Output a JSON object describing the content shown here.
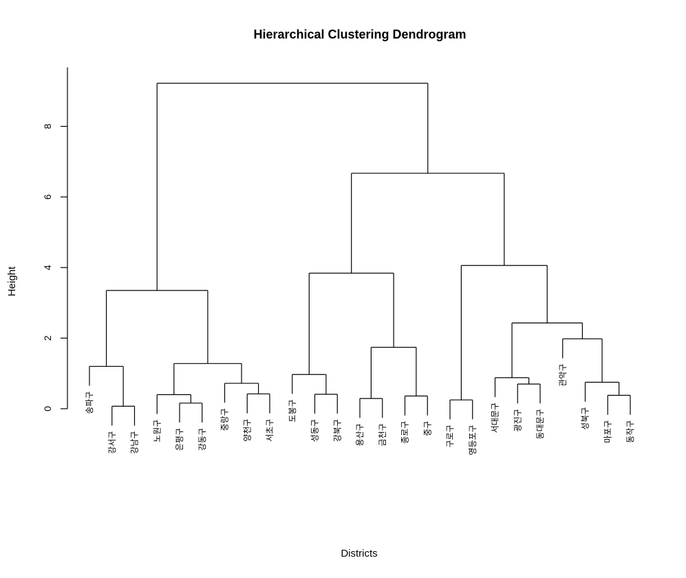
{
  "chart_data": {
    "type": "dendrogram",
    "title": "Hierarchical Clustering Dendrogram",
    "xlabel": "Districts",
    "ylabel": "Height",
    "ylim": [
      0,
      9.7
    ],
    "yticks": [
      0,
      2,
      4,
      6,
      8
    ],
    "leaves": [
      "송파구",
      "강서구",
      "강남구",
      "노원구",
      "은평구",
      "강동구",
      "중랑구",
      "양천구",
      "서초구",
      "도봉구",
      "성동구",
      "강북구",
      "용산구",
      "금천구",
      "종로구",
      "중구",
      "구로구",
      "영등포구",
      "서대문구",
      "광진구",
      "동대문구",
      "관악구",
      "성북구",
      "마포구",
      "동작구"
    ],
    "tree": {
      "height": 9.22,
      "children": [
        {
          "height": 3.35,
          "children": [
            {
              "height": 1.2,
              "children": [
                "송파구",
                {
                  "height": 0.07,
                  "children": [
                    "강서구",
                    "강남구"
                  ]
                }
              ]
            },
            {
              "height": 1.28,
              "children": [
                {
                  "height": 0.4,
                  "children": [
                    "노원구",
                    {
                      "height": 0.16,
                      "children": [
                        "은평구",
                        "강동구"
                      ]
                    }
                  ]
                },
                {
                  "height": 0.72,
                  "children": [
                    "중랑구",
                    {
                      "height": 0.42,
                      "children": [
                        "양천구",
                        "서초구"
                      ]
                    }
                  ]
                }
              ]
            }
          ]
        },
        {
          "height": 6.67,
          "children": [
            {
              "height": 3.84,
              "children": [
                {
                  "height": 0.97,
                  "children": [
                    "도봉구",
                    {
                      "height": 0.41,
                      "children": [
                        "성동구",
                        "강북구"
                      ]
                    }
                  ]
                },
                {
                  "height": 1.74,
                  "children": [
                    {
                      "height": 0.29,
                      "children": [
                        "용산구",
                        "금천구"
                      ]
                    },
                    {
                      "height": 0.36,
                      "children": [
                        "종로구",
                        "중구"
                      ]
                    }
                  ]
                }
              ]
            },
            {
              "height": 4.06,
              "children": [
                {
                  "height": 0.25,
                  "children": [
                    "구로구",
                    "영등포구"
                  ]
                },
                {
                  "height": 2.43,
                  "children": [
                    {
                      "height": 0.88,
                      "children": [
                        "서대문구",
                        {
                          "height": 0.7,
                          "children": [
                            "광진구",
                            "동대문구"
                          ]
                        }
                      ]
                    },
                    {
                      "height": 1.98,
                      "children": [
                        "관악구",
                        {
                          "height": 0.75,
                          "children": [
                            "성북구",
                            {
                              "height": 0.38,
                              "children": [
                                "마포구",
                                "동작구"
                              ]
                            }
                          ]
                        }
                      ]
                    }
                  ]
                }
              ]
            }
          ]
        }
      ]
    }
  }
}
